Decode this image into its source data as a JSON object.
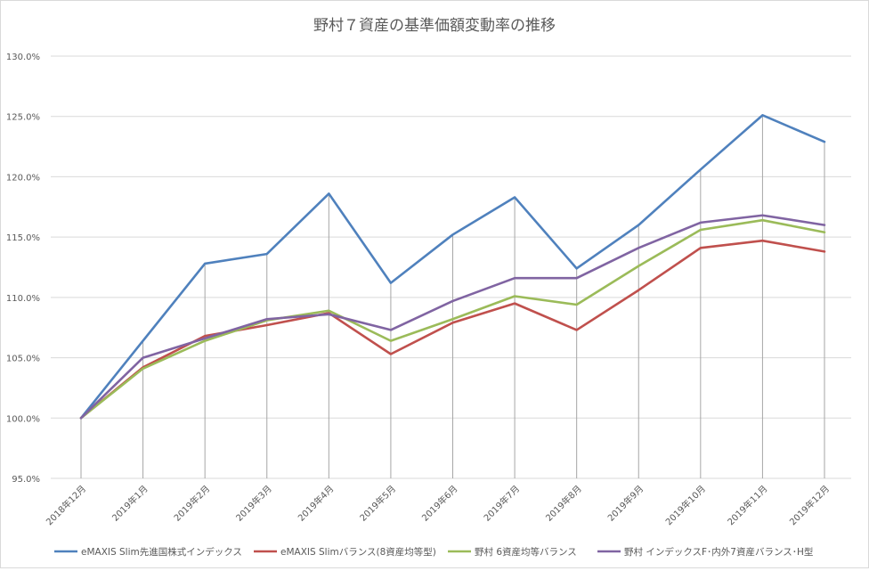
{
  "chart_data": {
    "type": "line",
    "title": "野村７資産の基準価額変動率の推移",
    "xlabel": "",
    "ylabel": "",
    "categories": [
      "2018年12月",
      "2019年1月",
      "2019年2月",
      "2019年3月",
      "2019年4月",
      "2019年5月",
      "2019年6月",
      "2019年7月",
      "2019年8月",
      "2019年9月",
      "2019年10月",
      "2019年11月",
      "2019年12月"
    ],
    "ylim": [
      95,
      130
    ],
    "yticks": [
      "130.0%",
      "125.0%",
      "120.0%",
      "115.0%",
      "110.0%",
      "105.0%",
      "100.0%",
      "95.0%"
    ],
    "ytick_values": [
      130,
      125,
      120,
      115,
      110,
      105,
      100,
      95
    ],
    "grid": true,
    "legend_position": "bottom",
    "series": [
      {
        "name": "eMAXIS Slim先進国株式インデックス",
        "color": "#4f81bd",
        "values": [
          100.0,
          106.4,
          112.8,
          113.6,
          118.6,
          111.2,
          115.2,
          118.3,
          112.4,
          116.0,
          120.6,
          125.1,
          122.9
        ]
      },
      {
        "name": "eMAXIS Slimバランス(8資産均等型)",
        "color": "#c0504d",
        "values": [
          100.0,
          104.2,
          106.8,
          107.7,
          108.7,
          105.3,
          107.9,
          109.5,
          107.3,
          110.6,
          114.1,
          114.7,
          113.8
        ]
      },
      {
        "name": "野村 6資産均等バランス",
        "color": "#9bbb59",
        "values": [
          100.0,
          104.1,
          106.4,
          108.1,
          108.9,
          106.4,
          108.2,
          110.1,
          109.4,
          112.6,
          115.6,
          116.4,
          115.4
        ]
      },
      {
        "name": "野村 インデックスF･内外7資産バランス･H型",
        "color": "#8064a2",
        "values": [
          100.0,
          105.0,
          106.6,
          108.2,
          108.6,
          107.3,
          109.7,
          111.6,
          111.6,
          114.1,
          116.2,
          116.8,
          116.0
        ]
      }
    ]
  }
}
